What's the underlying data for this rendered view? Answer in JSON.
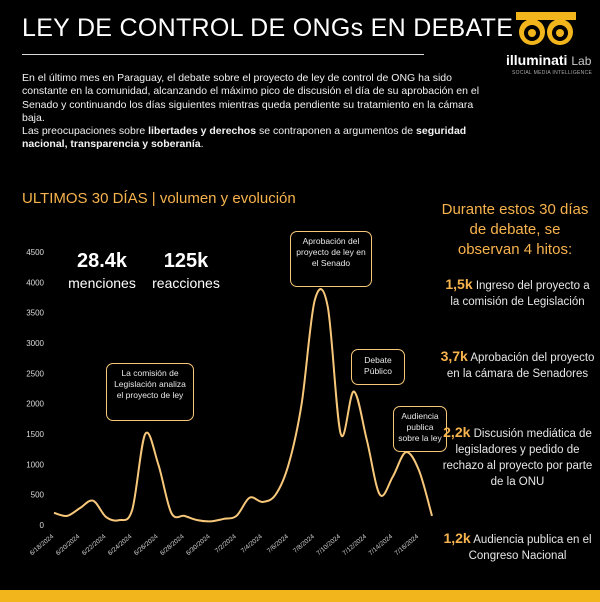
{
  "header": {
    "title": "LEY DE CONTROL DE ONGs EN DEBATE"
  },
  "logo": {
    "name": "illuminati",
    "lab": "Lab",
    "tagline": "SOCIAL MEDIA INTELLIGENCE"
  },
  "intro": {
    "p1": "En el último mes en Paraguay, el debate sobre el proyecto de ley de control de ONG ha sido constante en la comunidad, alcanzando el máximo pico de discusión el día de su aprobación en el Senado y continuando los días siguientes mientras queda pendiente su tratamiento en la cámara baja.",
    "p2_a": "Las preocupaciones sobre ",
    "p2_b": "libertades y derechos",
    "p2_c": " se contraponen a argumentos de ",
    "p2_d": "seguridad nacional, transparencia y soberanía",
    "p2_e": "."
  },
  "section": {
    "title": "ULTIMOS 30 DÍAS | volumen y evolución"
  },
  "kpis": [
    {
      "value": "28.4k",
      "label": "menciones"
    },
    {
      "value": "125k",
      "label": "reacciones"
    }
  ],
  "callouts": [
    "La comisión de Legislación analiza el proyecto de ley",
    "Aprobación del proyecto de ley en el Senado",
    "Debate Público",
    "Audiencia publica sobre la ley"
  ],
  "side": {
    "title": "Durante estos 30 días de debate, se observan 4 hitos:",
    "milestones": [
      {
        "value": "1,5k",
        "text": " Ingreso del proyecto a la comisión de Legislación"
      },
      {
        "value": "3,7k",
        "text": " Aprobación del proyecto en la cámara de Senadores"
      },
      {
        "value": "2,2k",
        "text": " Discusión mediática de legisladores y pedido de rechazo al proyecto por parte de la ONU"
      },
      {
        "value": "1,2k",
        "text": " Audiencia publica en el Congreso Nacional"
      }
    ]
  },
  "colors": {
    "accent": "#f7b34d",
    "line": "#f7c77a",
    "bar": "#f2b51c"
  },
  "chart_data": {
    "type": "line",
    "ylim": [
      0,
      4500
    ],
    "yticks": [
      0,
      500,
      1000,
      1500,
      2000,
      2500,
      3000,
      3500,
      4000,
      4500
    ],
    "xticks": [
      "6/18/2024",
      "6/20/2024",
      "6/22/2024",
      "6/24/2024",
      "6/26/2024",
      "6/28/2024",
      "6/30/2024",
      "7/2/2024",
      "7/4/2024",
      "7/6/2024",
      "7/8/2024",
      "7/10/2024",
      "7/12/2024",
      "7/14/2024",
      "7/16/2024"
    ],
    "x": [
      "6/18/2024",
      "6/19/2024",
      "6/20/2024",
      "6/21/2024",
      "6/22/2024",
      "6/23/2024",
      "6/24/2024",
      "6/25/2024",
      "6/26/2024",
      "6/27/2024",
      "6/28/2024",
      "6/29/2024",
      "6/30/2024",
      "7/1/2024",
      "7/2/2024",
      "7/3/2024",
      "7/4/2024",
      "7/5/2024",
      "7/6/2024",
      "7/7/2024",
      "7/8/2024",
      "7/9/2024",
      "7/10/2024",
      "7/11/2024",
      "7/12/2024",
      "7/13/2024",
      "7/14/2024",
      "7/15/2024",
      "7/16/2024",
      "7/17/2024"
    ],
    "values": [
      200,
      150,
      280,
      400,
      130,
      80,
      250,
      1500,
      1000,
      200,
      150,
      80,
      60,
      100,
      150,
      450,
      380,
      500,
      1000,
      2000,
      3700,
      3600,
      1500,
      2200,
      1400,
      500,
      800,
      1200,
      900,
      150
    ]
  }
}
